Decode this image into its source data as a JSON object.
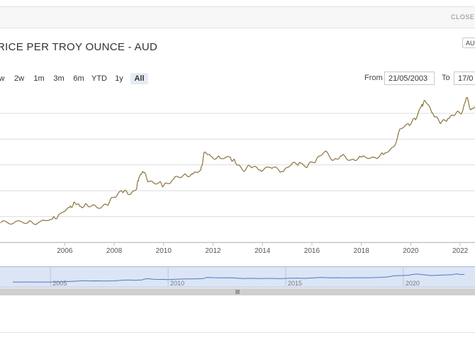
{
  "header": {
    "close_label": "CLOSE CHART"
  },
  "title": "RICE PER TROY OUNCE - AUD",
  "currency_selector": {
    "value": "AUD"
  },
  "range_buttons": [
    {
      "label": "w"
    },
    {
      "label": "2w"
    },
    {
      "label": "1m"
    },
    {
      "label": "3m"
    },
    {
      "label": "6m"
    },
    {
      "label": "YTD"
    },
    {
      "label": "1y"
    },
    {
      "label": "All",
      "active": true
    }
  ],
  "date_range": {
    "from_label": "From",
    "from_value": "21/05/2003",
    "to_label": "To",
    "to_value": "17/0"
  },
  "colors": {
    "series_line": "#8b7340",
    "navigator_line": "#4f78c4",
    "navigator_fill": "#dbe5f5",
    "active_button": "#e6ebf5"
  },
  "chart_data": {
    "type": "line",
    "xlabel": "",
    "ylabel": "",
    "x_tick_labels": [
      "2006",
      "2008",
      "2010",
      "2012",
      "2014",
      "2016",
      "2018",
      "2020",
      "2022"
    ],
    "navigator_tick_labels": [
      "2005",
      "2010",
      "2015",
      "2020"
    ],
    "x_range": [
      2003.38,
      2022.6
    ],
    "gridlines": 6,
    "grid": true,
    "series": [
      {
        "points": [
          [
            2003.4,
            0.15
          ],
          [
            2004.0,
            0.16
          ],
          [
            2004.5,
            0.15
          ],
          [
            2005.0,
            0.16
          ],
          [
            2005.5,
            0.18
          ],
          [
            2005.8,
            0.22
          ],
          [
            2006.2,
            0.27
          ],
          [
            2006.4,
            0.31
          ],
          [
            2006.6,
            0.28
          ],
          [
            2006.9,
            0.29
          ],
          [
            2007.3,
            0.27
          ],
          [
            2007.7,
            0.29
          ],
          [
            2008.0,
            0.35
          ],
          [
            2008.3,
            0.4
          ],
          [
            2008.6,
            0.37
          ],
          [
            2008.9,
            0.41
          ],
          [
            2009.0,
            0.5
          ],
          [
            2009.15,
            0.55
          ],
          [
            2009.4,
            0.47
          ],
          [
            2009.8,
            0.46
          ],
          [
            2010.0,
            0.44
          ],
          [
            2010.4,
            0.49
          ],
          [
            2010.8,
            0.52
          ],
          [
            2011.2,
            0.53
          ],
          [
            2011.5,
            0.56
          ],
          [
            2011.65,
            0.7
          ],
          [
            2011.9,
            0.67
          ],
          [
            2012.3,
            0.65
          ],
          [
            2012.7,
            0.66
          ],
          [
            2012.9,
            0.62
          ],
          [
            2013.2,
            0.56
          ],
          [
            2013.5,
            0.59
          ],
          [
            2013.9,
            0.56
          ],
          [
            2014.3,
            0.58
          ],
          [
            2014.8,
            0.55
          ],
          [
            2015.1,
            0.59
          ],
          [
            2015.5,
            0.62
          ],
          [
            2015.8,
            0.58
          ],
          [
            2016.2,
            0.65
          ],
          [
            2016.5,
            0.7
          ],
          [
            2016.9,
            0.64
          ],
          [
            2017.2,
            0.67
          ],
          [
            2017.6,
            0.64
          ],
          [
            2018.0,
            0.66
          ],
          [
            2018.5,
            0.66
          ],
          [
            2018.9,
            0.68
          ],
          [
            2019.3,
            0.74
          ],
          [
            2019.6,
            0.88
          ],
          [
            2019.9,
            0.92
          ],
          [
            2020.2,
            0.95
          ],
          [
            2020.45,
            1.07
          ],
          [
            2020.6,
            1.09
          ],
          [
            2020.9,
            1.0
          ],
          [
            2021.2,
            0.92
          ],
          [
            2021.5,
            0.96
          ],
          [
            2021.8,
            0.99
          ],
          [
            2022.1,
            1.02
          ],
          [
            2022.25,
            1.12
          ],
          [
            2022.45,
            1.03
          ],
          [
            2022.6,
            1.05
          ]
        ]
      }
    ]
  }
}
